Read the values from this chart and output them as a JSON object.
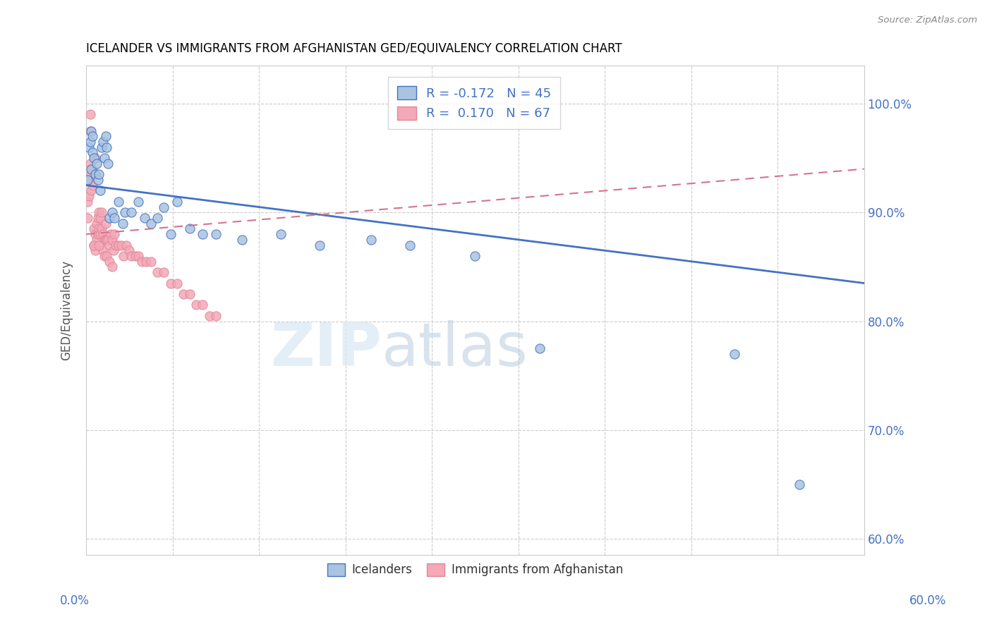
{
  "title": "ICELANDER VS IMMIGRANTS FROM AFGHANISTAN GED/EQUIVALENCY CORRELATION CHART",
  "source": "Source: ZipAtlas.com",
  "ylabel": "GED/Equivalency",
  "y_ticks": [
    0.6,
    0.7,
    0.8,
    0.9,
    1.0
  ],
  "y_tick_labels": [
    "60.0%",
    "70.0%",
    "80.0%",
    "90.0%",
    "100.0%"
  ],
  "x_min": 0.0,
  "x_max": 0.6,
  "y_min": 0.585,
  "y_max": 1.035,
  "r_blue": -0.172,
  "n_blue": 45,
  "r_pink": 0.17,
  "n_pink": 67,
  "legend_label_blue": "Icelanders",
  "legend_label_pink": "Immigrants from Afghanistan",
  "blue_color": "#a8c4e0",
  "pink_color": "#f4a8b8",
  "blue_line_color": "#4472c4",
  "pink_line_color": "#d4748c",
  "watermark_zip": "ZIP",
  "watermark_atlas": "atlas",
  "blue_scatter_x": [
    0.001,
    0.002,
    0.003,
    0.004,
    0.004,
    0.005,
    0.005,
    0.006,
    0.007,
    0.008,
    0.009,
    0.01,
    0.011,
    0.012,
    0.013,
    0.014,
    0.015,
    0.016,
    0.017,
    0.018,
    0.02,
    0.022,
    0.025,
    0.028,
    0.03,
    0.035,
    0.04,
    0.045,
    0.05,
    0.055,
    0.06,
    0.065,
    0.07,
    0.08,
    0.09,
    0.1,
    0.12,
    0.15,
    0.18,
    0.22,
    0.25,
    0.3,
    0.35,
    0.5,
    0.55
  ],
  "blue_scatter_y": [
    0.93,
    0.96,
    0.965,
    0.975,
    0.94,
    0.97,
    0.955,
    0.95,
    0.935,
    0.945,
    0.93,
    0.935,
    0.92,
    0.96,
    0.965,
    0.95,
    0.97,
    0.96,
    0.945,
    0.895,
    0.9,
    0.895,
    0.91,
    0.89,
    0.9,
    0.9,
    0.91,
    0.895,
    0.89,
    0.895,
    0.905,
    0.88,
    0.91,
    0.885,
    0.88,
    0.88,
    0.875,
    0.88,
    0.87,
    0.875,
    0.87,
    0.86,
    0.775,
    0.77,
    0.65
  ],
  "pink_scatter_x": [
    0.001,
    0.001,
    0.002,
    0.002,
    0.003,
    0.003,
    0.003,
    0.004,
    0.004,
    0.005,
    0.005,
    0.006,
    0.006,
    0.007,
    0.007,
    0.007,
    0.008,
    0.008,
    0.009,
    0.009,
    0.01,
    0.01,
    0.01,
    0.011,
    0.011,
    0.012,
    0.012,
    0.013,
    0.013,
    0.014,
    0.014,
    0.015,
    0.015,
    0.016,
    0.016,
    0.017,
    0.018,
    0.018,
    0.019,
    0.02,
    0.021,
    0.022,
    0.023,
    0.025,
    0.027,
    0.029,
    0.031,
    0.033,
    0.035,
    0.038,
    0.04,
    0.043,
    0.046,
    0.05,
    0.055,
    0.06,
    0.065,
    0.07,
    0.075,
    0.08,
    0.085,
    0.09,
    0.095,
    0.1,
    0.006,
    0.01,
    0.02
  ],
  "pink_scatter_y": [
    0.91,
    0.895,
    0.93,
    0.915,
    0.99,
    0.975,
    0.945,
    0.935,
    0.92,
    0.94,
    0.925,
    0.885,
    0.87,
    0.88,
    0.865,
    0.95,
    0.89,
    0.875,
    0.895,
    0.88,
    0.9,
    0.885,
    0.87,
    0.895,
    0.88,
    0.9,
    0.885,
    0.88,
    0.865,
    0.875,
    0.86,
    0.89,
    0.875,
    0.875,
    0.86,
    0.875,
    0.87,
    0.855,
    0.88,
    0.875,
    0.865,
    0.88,
    0.87,
    0.87,
    0.87,
    0.86,
    0.87,
    0.865,
    0.86,
    0.86,
    0.86,
    0.855,
    0.855,
    0.855,
    0.845,
    0.845,
    0.835,
    0.835,
    0.825,
    0.825,
    0.815,
    0.815,
    0.805,
    0.805,
    0.87,
    0.87,
    0.85
  ],
  "blue_trend_x": [
    0.0,
    0.6
  ],
  "blue_trend_y": [
    0.925,
    0.835
  ],
  "pink_trend_x": [
    0.0,
    0.6
  ],
  "pink_trend_y": [
    0.88,
    0.94
  ]
}
